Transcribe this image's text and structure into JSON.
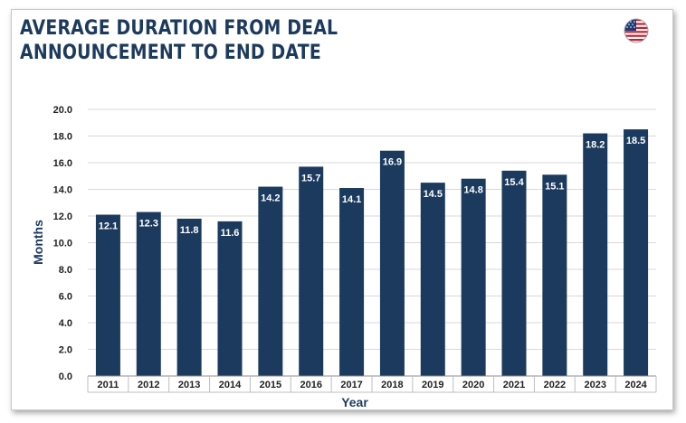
{
  "title_lines": [
    "AVERAGE DURATION FROM DEAL",
    "ANNOUNCEMENT TO END DATE"
  ],
  "flag_icon": "us-flag-icon",
  "colors": {
    "bar": "#1b3a5e",
    "title": "#1c3a5e",
    "grid": "#d9d9d9",
    "flag_blue": "#1f3b75",
    "flag_red": "#c8202f"
  },
  "chart_data": {
    "type": "bar",
    "title": "AVERAGE DURATION FROM DEAL ANNOUNCEMENT TO END DATE",
    "xlabel": "Year",
    "ylabel": "Months",
    "ylim": [
      0,
      20
    ],
    "yticks": [
      "0.0",
      "2.0",
      "4.0",
      "6.0",
      "8.0",
      "10.0",
      "12.0",
      "14.0",
      "16.0",
      "18.0",
      "20.0"
    ],
    "grid": true,
    "categories": [
      "2011",
      "2012",
      "2013",
      "2014",
      "2015",
      "2016",
      "2017",
      "2018",
      "2019",
      "2020",
      "2021",
      "2022",
      "2023",
      "2024"
    ],
    "values": [
      12.1,
      12.3,
      11.8,
      11.6,
      14.2,
      15.7,
      14.1,
      16.9,
      14.5,
      14.8,
      15.4,
      15.1,
      18.2,
      18.5
    ],
    "labels": [
      "12.1",
      "12.3",
      "11.8",
      "11.6",
      "14.2",
      "15.7",
      "14.1",
      "16.9",
      "14.5",
      "14.8",
      "15.4",
      "15.1",
      "18.2",
      "18.5"
    ]
  }
}
